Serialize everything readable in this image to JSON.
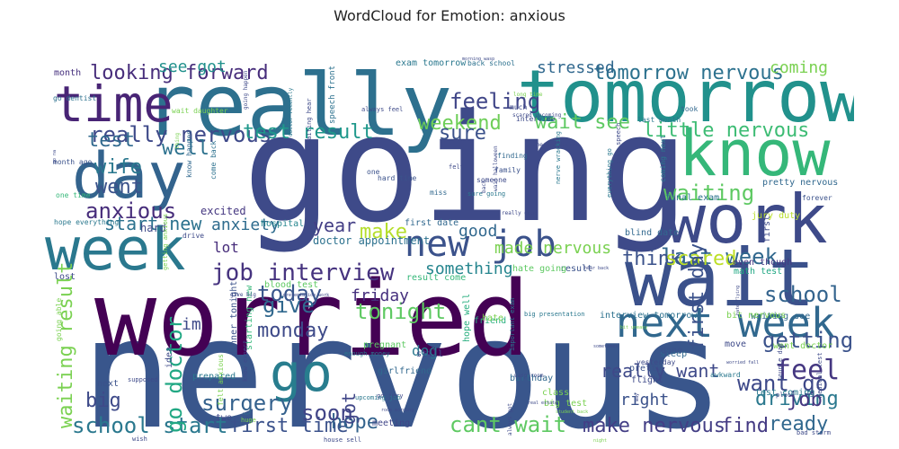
{
  "title": "WordCloud for Emotion: anxious",
  "chart_data": {
    "type": "wordcloud",
    "title": "WordCloud for Emotion: anxious",
    "words": [
      {
        "text": "nervous",
        "c": "#39568c"
      },
      {
        "text": "going",
        "c": "#3e4a89"
      },
      {
        "text": "worried",
        "c": "#440154"
      },
      {
        "text": "really",
        "c": "#2d708e"
      },
      {
        "text": "tomorrow",
        "c": "#21918c"
      },
      {
        "text": "wait",
        "c": "#3b518b"
      },
      {
        "text": "know",
        "c": "#35b779"
      },
      {
        "text": "work",
        "c": "#3e4a89"
      },
      {
        "text": "day",
        "c": "#33638d"
      },
      {
        "text": "week",
        "c": "#2a788e"
      },
      {
        "text": "time",
        "c": "#482475"
      },
      {
        "text": "next week",
        "c": "#31688e"
      },
      {
        "text": "go",
        "c": "#287d8e"
      },
      {
        "text": "new job",
        "c": "#3b528b"
      },
      {
        "text": "job interview",
        "c": "#46337f"
      },
      {
        "text": "feel",
        "c": "#453781"
      },
      {
        "text": "waiting",
        "c": "#5ec962"
      },
      {
        "text": "anxious",
        "c": "#472d7b"
      },
      {
        "text": "weekend",
        "c": "#6ece58"
      },
      {
        "text": "feeling",
        "c": "#404688"
      },
      {
        "text": "tomorrow nervous",
        "c": "#2c718e"
      },
      {
        "text": "really nervous",
        "c": "#3e4989"
      },
      {
        "text": "little nervous",
        "c": "#3dbc74"
      },
      {
        "text": "test result",
        "c": "#1f988b"
      },
      {
        "text": "last week",
        "c": "#31688e"
      },
      {
        "text": "school",
        "c": "#33638d"
      },
      {
        "text": "waiting result",
        "c": "#7ad151"
      },
      {
        "text": "school start",
        "c": "#2a788e"
      },
      {
        "text": "first time",
        "c": "#3b528b"
      },
      {
        "text": "cant wait",
        "c": "#5ec962"
      },
      {
        "text": "make nervous",
        "c": "#433e85"
      },
      {
        "text": "find",
        "c": "#443a83"
      },
      {
        "text": "driving",
        "c": "#2a788e"
      },
      {
        "text": "ready",
        "c": "#31688e"
      },
      {
        "text": "big",
        "c": "#3e4a89"
      },
      {
        "text": "go doctor",
        "c": "#22a884"
      },
      {
        "text": "surgery",
        "c": "#34618d"
      },
      {
        "text": "hope",
        "c": "#33638d"
      },
      {
        "text": "got",
        "c": "#404688"
      },
      {
        "text": "soon",
        "c": "#414487"
      },
      {
        "text": "job",
        "c": "#453781"
      },
      {
        "text": "getting",
        "c": "#3b528b"
      },
      {
        "text": "want go",
        "c": "#3e4989"
      },
      {
        "text": "think",
        "c": "#3b528b"
      },
      {
        "text": "scared",
        "c": "#bddf26"
      },
      {
        "text": "make",
        "c": "#b5de2b"
      },
      {
        "text": "today",
        "c": "#39568c"
      },
      {
        "text": "give",
        "c": "#31688e"
      },
      {
        "text": "tonight",
        "c": "#5ec962"
      },
      {
        "text": "monday",
        "c": "#3e4a89"
      },
      {
        "text": "looking forward",
        "c": "#472d7b"
      },
      {
        "text": "see got",
        "c": "#21918c"
      },
      {
        "text": "stressed",
        "c": "#31688e"
      },
      {
        "text": "coming",
        "c": "#7ad151"
      },
      {
        "text": "well",
        "c": "#2c718e"
      },
      {
        "text": "test",
        "c": "#30698e"
      },
      {
        "text": "wife",
        "c": "#2a788e"
      },
      {
        "text": "went",
        "c": "#3b528b"
      },
      {
        "text": "start new",
        "c": "#2c728e"
      },
      {
        "text": "sure",
        "c": "#3b528b"
      },
      {
        "text": "wait see",
        "c": "#5ec962"
      },
      {
        "text": "anxiety",
        "c": "#2f6c8e"
      },
      {
        "text": "year",
        "c": "#433e85"
      },
      {
        "text": "good",
        "c": "#31688e"
      },
      {
        "text": "made nervous",
        "c": "#7ad151"
      },
      {
        "text": "lot",
        "c": "#472d7b"
      },
      {
        "text": "im",
        "c": "#3e4a89"
      },
      {
        "text": "something",
        "c": "#25858e"
      },
      {
        "text": "friday",
        "c": "#46307e"
      },
      {
        "text": "dog",
        "c": "#2a788e"
      },
      {
        "text": "right",
        "c": "#3b528b"
      },
      {
        "text": "first day",
        "c": "#3b528b"
      },
      {
        "text": "really want",
        "c": "#3e4989"
      },
      {
        "text": "month",
        "c": "#46307e"
      },
      {
        "text": "excited",
        "c": "#453781"
      },
      {
        "text": "hard",
        "c": "#3e4a89"
      },
      {
        "text": "doctor appointment",
        "c": "#2c718e"
      },
      {
        "text": "hospital",
        "c": "#25858e"
      },
      {
        "text": "first date",
        "c": "#31688e"
      },
      {
        "text": "blind date",
        "c": "#31688e"
      },
      {
        "text": "even though",
        "c": "#453781"
      },
      {
        "text": "math test",
        "c": "#22a884"
      },
      {
        "text": "waiting see",
        "c": "#31688e"
      },
      {
        "text": "pretty nervous",
        "c": "#31688e"
      },
      {
        "text": "final exam",
        "c": "#2c728e"
      },
      {
        "text": "jury duty",
        "c": "#b8de29"
      },
      {
        "text": "interview tomorrow",
        "c": "#2c718e"
      },
      {
        "text": "bit nervous",
        "c": "#7ad151"
      },
      {
        "text": "went doctor",
        "c": "#7ad151"
      },
      {
        "text": "test coming",
        "c": "#2a788e"
      },
      {
        "text": "blood test",
        "c": "#5ec962"
      },
      {
        "text": "hope well",
        "c": "#29af7f"
      },
      {
        "text": "result",
        "c": "#3b528b"
      },
      {
        "text": "result come",
        "c": "#35b779"
      },
      {
        "text": "hate going",
        "c": "#5ec962"
      },
      {
        "text": "girlfriend",
        "c": "#31688e"
      },
      {
        "text": "prepared",
        "c": "#2a788e"
      },
      {
        "text": "move",
        "c": "#3e4a89"
      },
      {
        "text": "sleep",
        "c": "#31688e"
      },
      {
        "text": "done",
        "c": "#3b528b"
      },
      {
        "text": "pretty",
        "c": "#3b528b"
      },
      {
        "text": "flight",
        "c": "#3e4a89"
      },
      {
        "text": "next",
        "c": "#3b528b"
      },
      {
        "text": "two",
        "c": "#3e4a89"
      },
      {
        "text": "still",
        "c": "#3e4989"
      },
      {
        "text": "meeting",
        "c": "#404688"
      },
      {
        "text": "birthday",
        "c": "#31688e"
      },
      {
        "text": "class",
        "c": "#7ad151"
      },
      {
        "text": "big test",
        "c": "#7ad151"
      },
      {
        "text": "pregnant",
        "c": "#5ec962"
      },
      {
        "text": "friend",
        "c": "#29af7f"
      },
      {
        "text": "hate",
        "c": "#7ad151"
      },
      {
        "text": "idea",
        "c": "#3e4a89"
      },
      {
        "text": "dinner tonight",
        "c": "#3b528b"
      },
      {
        "text": "starting new",
        "c": "#35b779"
      },
      {
        "text": "lost",
        "c": "#3e4a89"
      },
      {
        "text": "exam tomorrow",
        "c": "#2a788e"
      },
      {
        "text": "back school",
        "c": "#2c718e"
      },
      {
        "text": "speech front",
        "c": "#2c718e"
      },
      {
        "text": "interview",
        "c": "#3e4a89"
      },
      {
        "text": "finding",
        "c": "#31688e"
      },
      {
        "text": "family",
        "c": "#3b528b"
      },
      {
        "text": "someone",
        "c": "#3e4a89"
      },
      {
        "text": "miss",
        "c": "#31688e"
      },
      {
        "text": "one",
        "c": "#3b528b"
      },
      {
        "text": "hard time",
        "c": "#3b528b"
      },
      {
        "text": "one time",
        "c": "#35b779"
      },
      {
        "text": "come back",
        "c": "#2c718e"
      },
      {
        "text": "know happen",
        "c": "#31688e"
      },
      {
        "text": "month ago",
        "c": "#3b528b"
      },
      {
        "text": "go dentist",
        "c": "#2c718e"
      },
      {
        "text": "took",
        "c": "#31688e"
      },
      {
        "text": "last month",
        "c": "#2a788e"
      },
      {
        "text": "much",
        "c": "#3e4a89"
      },
      {
        "text": "forever",
        "c": "#3b528b"
      },
      {
        "text": "yesterday",
        "c": "#3e4a89"
      },
      {
        "text": "awkward",
        "c": "#2a788e"
      },
      {
        "text": "couple day",
        "c": "#3e4a89"
      },
      {
        "text": "medical test",
        "c": "#3e4a89"
      },
      {
        "text": "place",
        "c": "#3e4a89"
      },
      {
        "text": "bad storm",
        "c": "#3e4a89"
      },
      {
        "text": "first",
        "c": "#3e4a89"
      },
      {
        "text": "drive",
        "c": "#3e4a89"
      },
      {
        "text": "enough money",
        "c": "#2a788e"
      },
      {
        "text": "big presentation",
        "c": "#2a788e"
      },
      {
        "text": "important exam",
        "c": "#2a788e"
      },
      {
        "text": "nerve wracking",
        "c": "#2a788e"
      },
      {
        "text": "give speech",
        "c": "#3e4a89"
      },
      {
        "text": "coming next",
        "c": "#2a788e"
      },
      {
        "text": "everything go",
        "c": "#2a788e"
      },
      {
        "text": "supposed",
        "c": "#3e4a89"
      },
      {
        "text": "wish",
        "c": "#3e4a89"
      },
      {
        "text": "house sell",
        "c": "#3e4a89"
      },
      {
        "text": "huge",
        "c": "#7ad151"
      },
      {
        "text": "go jury",
        "c": "#3e4a89"
      },
      {
        "text": "upcoming job",
        "c": "#2a788e"
      },
      {
        "text": "felt anxious",
        "c": "#7ad151"
      },
      {
        "text": "know expect",
        "c": "#3e4a89"
      },
      {
        "text": "going able",
        "c": "#7ad151"
      },
      {
        "text": "getting anxious",
        "c": "#7ad151"
      },
      {
        "text": "presentation work",
        "c": "#3e4a89"
      },
      {
        "text": "night",
        "c": "#7ad151"
      },
      {
        "text": "sometimes",
        "c": "#3e4a89"
      },
      {
        "text": "bit uneasy",
        "c": "#7ad151"
      },
      {
        "text": "hate flying",
        "c": "#3e4a89"
      },
      {
        "text": "way",
        "c": "#3e4a89"
      },
      {
        "text": "worried fall",
        "c": "#3e4a89"
      },
      {
        "text": "real estate",
        "c": "#3e4a89"
      },
      {
        "text": "student back",
        "c": "#7ad151"
      },
      {
        "text": "room morning",
        "c": "#3e4a89"
      },
      {
        "text": "hear back",
        "c": "#3e4a89"
      },
      {
        "text": "give big",
        "c": "#3e4a89"
      },
      {
        "text": "wasp room",
        "c": "#3e4a89"
      },
      {
        "text": "wait halloween",
        "c": "#3e4a89"
      },
      {
        "text": "doctor recently",
        "c": "#2a788e"
      },
      {
        "text": "going happen",
        "c": "#3e4a89"
      },
      {
        "text": "waiting hear",
        "c": "#3e4a89"
      },
      {
        "text": "always feel",
        "c": "#3e4a89"
      },
      {
        "text": "felt",
        "c": "#3e4a89"
      },
      {
        "text": "go na",
        "c": "#3e4a89"
      },
      {
        "text": "wait daughter",
        "c": "#7ad151"
      },
      {
        "text": "thing",
        "c": "#7ad151"
      },
      {
        "text": "checked doctor",
        "c": "#3e4a89"
      },
      {
        "text": "really good",
        "c": "#3e4a89"
      },
      {
        "text": "morning wasp",
        "c": "#3e4a89"
      },
      {
        "text": "scared upcoming",
        "c": "#3e4a89"
      },
      {
        "text": "sure going",
        "c": "#2a788e"
      },
      {
        "text": "back",
        "c": "#3e4a89"
      },
      {
        "text": "long time",
        "c": "#7ad151"
      },
      {
        "text": "always got",
        "c": "#3e4a89"
      },
      {
        "text": "hope everything",
        "c": "#2a788e"
      }
    ]
  }
}
